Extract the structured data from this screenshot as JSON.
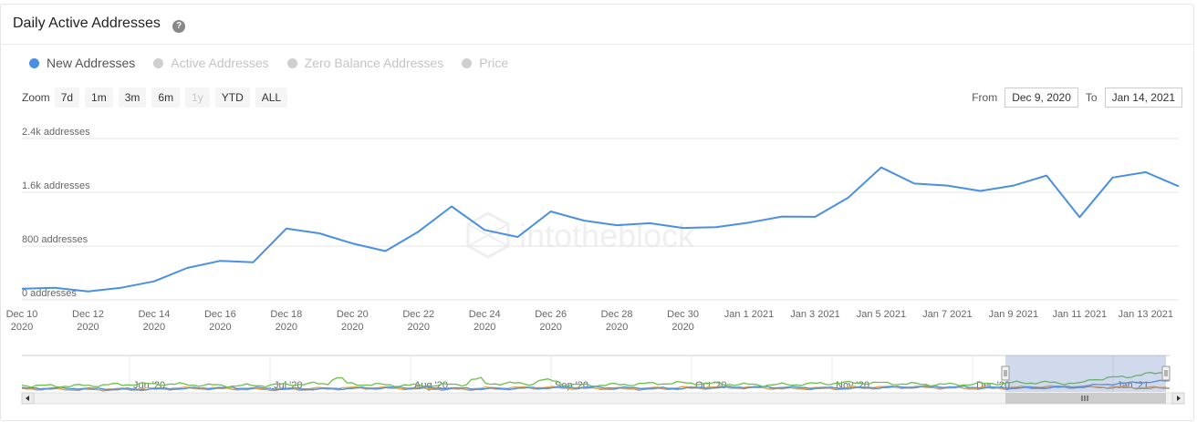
{
  "header": {
    "title": "Daily Active Addresses",
    "help_icon": "question-circle-icon"
  },
  "legend": [
    {
      "label": "New Addresses",
      "color": "#4a90e2",
      "active": true
    },
    {
      "label": "Active Addresses",
      "color": "#cfcfcf",
      "active": false
    },
    {
      "label": "Zero Balance Addresses",
      "color": "#cfcfcf",
      "active": false
    },
    {
      "label": "Price",
      "color": "#cfcfcf",
      "active": false
    }
  ],
  "zoom": {
    "label": "Zoom",
    "buttons": [
      {
        "label": "7d",
        "enabled": true
      },
      {
        "label": "1m",
        "enabled": true
      },
      {
        "label": "3m",
        "enabled": true
      },
      {
        "label": "6m",
        "enabled": true
      },
      {
        "label": "1y",
        "enabled": false
      },
      {
        "label": "YTD",
        "enabled": true
      },
      {
        "label": "ALL",
        "enabled": true
      }
    ]
  },
  "range": {
    "from_label": "From",
    "from_value": "Dec 9, 2020",
    "to_label": "To",
    "to_value": "Jan 14, 2021"
  },
  "watermark": "intotheblock",
  "chart_data": {
    "type": "line",
    "ylim": [
      0,
      2400
    ],
    "yticks": [
      {
        "value": 0,
        "label": "0 addresses"
      },
      {
        "value": 800,
        "label": "800 addresses"
      },
      {
        "value": 1600,
        "label": "1.6k addresses"
      },
      {
        "value": 2400,
        "label": "2.4k addresses"
      }
    ],
    "x": [
      "2020-12-10",
      "2020-12-11",
      "2020-12-12",
      "2020-12-13",
      "2020-12-14",
      "2020-12-15",
      "2020-12-16",
      "2020-12-17",
      "2020-12-18",
      "2020-12-19",
      "2020-12-20",
      "2020-12-21",
      "2020-12-22",
      "2020-12-23",
      "2020-12-24",
      "2020-12-25",
      "2020-12-26",
      "2020-12-27",
      "2020-12-28",
      "2020-12-29",
      "2020-12-30",
      "2020-12-31",
      "2021-01-01",
      "2021-01-02",
      "2021-01-03",
      "2021-01-04",
      "2021-01-05",
      "2021-01-06",
      "2021-01-07",
      "2021-01-08",
      "2021-01-09",
      "2021-01-10",
      "2021-01-11",
      "2021-01-12",
      "2021-01-13",
      "2021-01-14"
    ],
    "xticks": [
      {
        "index": 0,
        "line1": "Dec 10",
        "line2": "2020"
      },
      {
        "index": 2,
        "line1": "Dec 12",
        "line2": "2020"
      },
      {
        "index": 4,
        "line1": "Dec 14",
        "line2": "2020"
      },
      {
        "index": 6,
        "line1": "Dec 16",
        "line2": "2020"
      },
      {
        "index": 8,
        "line1": "Dec 18",
        "line2": "2020"
      },
      {
        "index": 10,
        "line1": "Dec 20",
        "line2": "2020"
      },
      {
        "index": 12,
        "line1": "Dec 22",
        "line2": "2020"
      },
      {
        "index": 14,
        "line1": "Dec 24",
        "line2": "2020"
      },
      {
        "index": 16,
        "line1": "Dec 26",
        "line2": "2020"
      },
      {
        "index": 18,
        "line1": "Dec 28",
        "line2": "2020"
      },
      {
        "index": 20,
        "line1": "Dec 30",
        "line2": "2020"
      },
      {
        "index": 22,
        "line1": "Jan 1 2021",
        "line2": ""
      },
      {
        "index": 24,
        "line1": "Jan 3 2021",
        "line2": ""
      },
      {
        "index": 26,
        "line1": "Jan 5 2021",
        "line2": ""
      },
      {
        "index": 28,
        "line1": "Jan 7 2021",
        "line2": ""
      },
      {
        "index": 30,
        "line1": "Jan 9 2021",
        "line2": ""
      },
      {
        "index": 32,
        "line1": "Jan 11 2021",
        "line2": ""
      },
      {
        "index": 34,
        "line1": "Jan 13 2021",
        "line2": ""
      }
    ],
    "series": [
      {
        "name": "New Addresses",
        "color": "#4a90e2",
        "values": [
          165,
          180,
          125,
          180,
          275,
          475,
          580,
          560,
          1060,
          990,
          840,
          725,
          1015,
          1390,
          1040,
          935,
          1315,
          1180,
          1110,
          1140,
          1070,
          1080,
          1150,
          1240,
          1235,
          1520,
          1970,
          1730,
          1700,
          1620,
          1700,
          1850,
          1230,
          1820,
          1900,
          1690
        ]
      }
    ],
    "navigator": {
      "labels": [
        "Jun '20",
        "Jul '20",
        "Aug '20",
        "Sep '20",
        "Oct '20",
        "Nov '20",
        "Dec '20",
        "Jan '21"
      ],
      "colors": {
        "green": "#6cc04a",
        "blue": "#4a90e2",
        "orange": "#e8a24c",
        "gray": "#9a9a9a"
      }
    }
  }
}
